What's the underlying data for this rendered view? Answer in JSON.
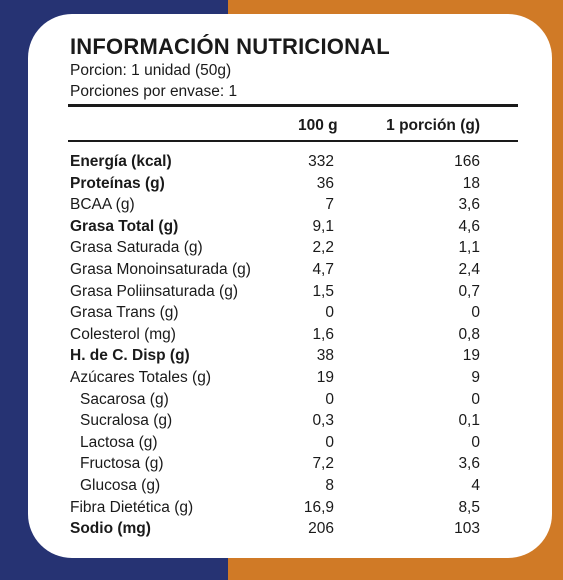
{
  "title": "INFORMACIÓN NUTRICIONAL",
  "serving_size": "Porcion: 1 unidad (50g)",
  "servings_per_container": "Porciones por envase: 1",
  "columns": {
    "per_100g": "100 g",
    "per_serving": "1 porción (g)"
  },
  "colors": {
    "left_band": "#263373",
    "right_band": "#d07a26",
    "card": "#ffffff"
  },
  "rows": [
    {
      "label": "Energía (kcal)",
      "per_100g": "332",
      "per_serving": "166",
      "bold": true,
      "indent": false
    },
    {
      "label": "Proteínas (g)",
      "per_100g": "36",
      "per_serving": "18",
      "bold": true,
      "indent": false
    },
    {
      "label": "BCAA (g)",
      "per_100g": "7",
      "per_serving": "3,6",
      "bold": false,
      "indent": false
    },
    {
      "label": "Grasa Total (g)",
      "per_100g": "9,1",
      "per_serving": "4,6",
      "bold": true,
      "indent": false
    },
    {
      "label": "Grasa Saturada (g)",
      "per_100g": "2,2",
      "per_serving": "1,1",
      "bold": false,
      "indent": false
    },
    {
      "label": "Grasa Monoinsaturada (g)",
      "per_100g": "4,7",
      "per_serving": "2,4",
      "bold": false,
      "indent": false
    },
    {
      "label": "Grasa Poliinsaturada (g)",
      "per_100g": "1,5",
      "per_serving": "0,7",
      "bold": false,
      "indent": false
    },
    {
      "label": "Grasa Trans (g)",
      "per_100g": "0",
      "per_serving": "0",
      "bold": false,
      "indent": false
    },
    {
      "label": "Colesterol (mg)",
      "per_100g": "1,6",
      "per_serving": "0,8",
      "bold": false,
      "indent": false
    },
    {
      "label": "H. de C. Disp (g)",
      "per_100g": "38",
      "per_serving": "19",
      "bold": true,
      "indent": false
    },
    {
      "label": "Azúcares Totales (g)",
      "per_100g": "19",
      "per_serving": "9",
      "bold": false,
      "indent": false
    },
    {
      "label": "Sacarosa (g)",
      "per_100g": "0",
      "per_serving": "0",
      "bold": false,
      "indent": true
    },
    {
      "label": "Sucralosa (g)",
      "per_100g": "0,3",
      "per_serving": "0,1",
      "bold": false,
      "indent": true
    },
    {
      "label": "Lactosa (g)",
      "per_100g": "0",
      "per_serving": "0",
      "bold": false,
      "indent": true
    },
    {
      "label": "Fructosa (g)",
      "per_100g": "7,2",
      "per_serving": "3,6",
      "bold": false,
      "indent": true
    },
    {
      "label": "Glucosa (g)",
      "per_100g": "8",
      "per_serving": "4",
      "bold": false,
      "indent": true
    },
    {
      "label": "Fibra Dietética (g)",
      "per_100g": "16,9",
      "per_serving": "8,5",
      "bold": false,
      "indent": false
    },
    {
      "label": "Sodio (mg)",
      "per_100g": "206",
      "per_serving": "103",
      "bold": true,
      "indent": false
    }
  ]
}
